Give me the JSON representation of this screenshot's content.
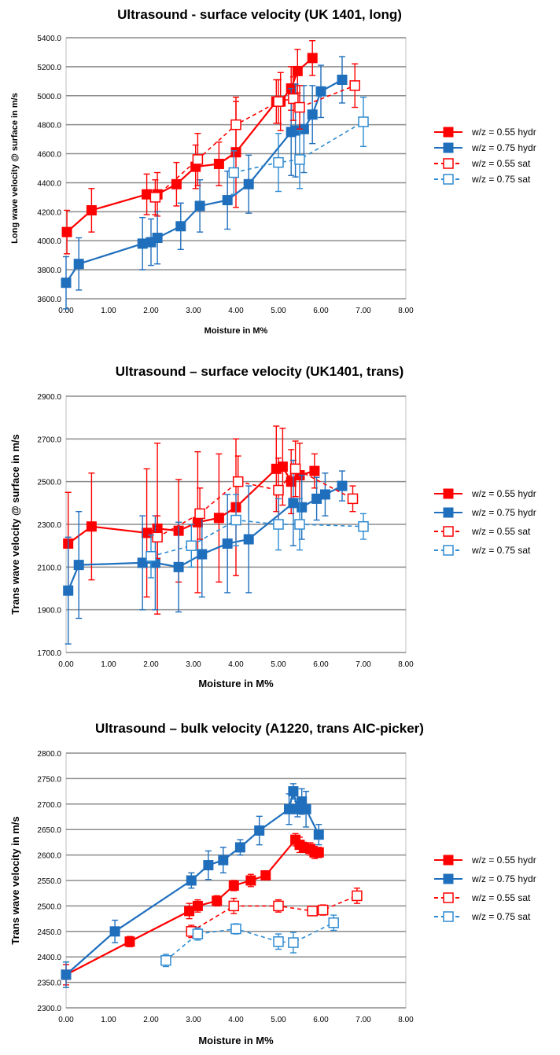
{
  "chart_data": [
    {
      "type": "scatter",
      "title": "Ultrasound - surface velocity (UK 1401, long)",
      "xlabel": "Moisture in M%",
      "ylabel": "Long wave velocity @ surface in m/s",
      "xlim": [
        0,
        8
      ],
      "ylim": [
        3600,
        5400
      ],
      "xticks": [
        "0.00",
        "1.00",
        "2.00",
        "3.00",
        "4.00",
        "5.00",
        "6.00",
        "7.00",
        "8.00"
      ],
      "yticks": [
        "3600.0",
        "3800.0",
        "4000.0",
        "4200.0",
        "4400.0",
        "4600.0",
        "4800.0",
        "5000.0",
        "5200.0",
        "5400.0"
      ],
      "grid": "horizontal",
      "legend": "right",
      "series": [
        {
          "name": "w/z = 0.55 hydr",
          "color": "#ff0000",
          "style": "solid",
          "marker": "filled-square",
          "points": [
            [
              0.02,
              4060,
              150
            ],
            [
              0.6,
              4210,
              150
            ],
            [
              1.9,
              4320,
              140
            ],
            [
              2.15,
              4320,
              150
            ],
            [
              2.6,
              4390,
              150
            ],
            [
              3.05,
              4510,
              150
            ],
            [
              3.6,
              4530,
              150
            ],
            [
              4.0,
              4610,
              380
            ],
            [
              4.95,
              4960,
              150
            ],
            [
              5.05,
              4960,
              200
            ],
            [
              5.3,
              5050,
              150
            ],
            [
              5.45,
              5170,
              150
            ],
            [
              5.8,
              5260,
              120
            ]
          ]
        },
        {
          "name": "w/z = 0.75 hydr",
          "color": "#1f6fbd",
          "style": "solid",
          "marker": "filled-square",
          "points": [
            [
              0.0,
              3710,
              180
            ],
            [
              0.3,
              3840,
              180
            ],
            [
              1.8,
              3980,
              180
            ],
            [
              2.0,
              3990,
              160
            ],
            [
              2.15,
              4020,
              180
            ],
            [
              2.7,
              4100,
              160
            ],
            [
              3.15,
              4240,
              180
            ],
            [
              3.8,
              4280,
              200
            ],
            [
              4.3,
              4390,
              200
            ],
            [
              5.3,
              4750,
              300
            ],
            [
              5.4,
              4760,
              320
            ],
            [
              5.6,
              4770,
              300
            ],
            [
              5.8,
              4870,
              200
            ],
            [
              6.0,
              5030,
              180
            ],
            [
              6.5,
              5110,
              160
            ]
          ]
        },
        {
          "name": "w/z = 0.55 sat",
          "color": "#ff0000",
          "style": "dashed",
          "marker": "open-square",
          "points": [
            [
              2.1,
              4300,
              120
            ],
            [
              3.1,
              4560,
              180
            ],
            [
              4.0,
              4800,
              160
            ],
            [
              5.0,
              4960,
              150
            ],
            [
              5.35,
              4980,
              150
            ],
            [
              5.5,
              4920,
              150
            ],
            [
              6.8,
              5070,
              150
            ]
          ]
        },
        {
          "name": "w/z = 0.75 sat",
          "color": "#2e8bd2",
          "style": "dashed",
          "marker": "open-square",
          "points": [
            [
              3.95,
              4470,
              150
            ],
            [
              5.0,
              4540,
              200
            ],
            [
              5.5,
              4560,
              200
            ],
            [
              7.0,
              4820,
              170
            ]
          ]
        }
      ]
    },
    {
      "type": "scatter",
      "title": "Ultrasound – surface velocity (UK1401, trans)",
      "xlabel": "Moisture in M%",
      "ylabel": "Trans wave velocity @ surface in m/s",
      "xlim": [
        0,
        8
      ],
      "ylim": [
        1700,
        2900
      ],
      "xticks": [
        "0.00",
        "1.00",
        "2.00",
        "3.00",
        "4.00",
        "5.00",
        "6.00",
        "7.00",
        "8.00"
      ],
      "yticks": [
        "1700.0",
        "1900.0",
        "2100.0",
        "2300.0",
        "2500.0",
        "2700.0",
        "2900.0"
      ],
      "grid": "horizontal",
      "legend": "right",
      "series": [
        {
          "name": "w/z = 0.55 hydr",
          "color": "#ff0000",
          "style": "solid",
          "marker": "filled-square",
          "points": [
            [
              0.05,
              2210,
              240
            ],
            [
              0.6,
              2290,
              250
            ],
            [
              1.9,
              2260,
              300
            ],
            [
              2.15,
              2280,
              400
            ],
            [
              2.65,
              2270,
              240
            ],
            [
              3.1,
              2310,
              330
            ],
            [
              3.6,
              2330,
              300
            ],
            [
              4.0,
              2380,
              320
            ],
            [
              4.95,
              2560,
              200
            ],
            [
              5.1,
              2570,
              180
            ],
            [
              5.3,
              2500,
              150
            ],
            [
              5.5,
              2530,
              150
            ],
            [
              5.85,
              2550,
              80
            ]
          ]
        },
        {
          "name": "w/z = 0.75 hydr",
          "color": "#1f6fbd",
          "style": "solid",
          "marker": "filled-square",
          "points": [
            [
              0.05,
              1990,
              250
            ],
            [
              0.3,
              2110,
              250
            ],
            [
              1.8,
              2120,
              220
            ],
            [
              2.1,
              2120,
              220
            ],
            [
              2.65,
              2100,
              210
            ],
            [
              3.2,
              2160,
              200
            ],
            [
              3.8,
              2210,
              230
            ],
            [
              4.3,
              2230,
              250
            ],
            [
              5.35,
              2400,
              200
            ],
            [
              5.55,
              2380,
              150
            ],
            [
              5.9,
              2420,
              100
            ],
            [
              6.1,
              2440,
              100
            ],
            [
              6.5,
              2480,
              70
            ]
          ]
        },
        {
          "name": "w/z = 0.55 sat",
          "color": "#ff0000",
          "style": "dashed",
          "marker": "open-square",
          "points": [
            [
              2.15,
              2240,
              100
            ],
            [
              3.15,
              2350,
              120
            ],
            [
              4.05,
              2500,
              120
            ],
            [
              5.0,
              2460,
              150
            ],
            [
              5.4,
              2560,
              130
            ],
            [
              6.75,
              2420,
              60
            ]
          ]
        },
        {
          "name": "w/z = 0.75 sat",
          "color": "#2e8bd2",
          "style": "dashed",
          "marker": "open-square",
          "points": [
            [
              2.0,
              2150,
              100
            ],
            [
              2.95,
              2200,
              100
            ],
            [
              4.0,
              2320,
              120
            ],
            [
              5.0,
              2300,
              120
            ],
            [
              5.5,
              2300,
              120
            ],
            [
              7.0,
              2290,
              60
            ]
          ]
        }
      ]
    },
    {
      "type": "scatter",
      "title": "Ultrasound – bulk velocity (A1220, trans AIC-picker)",
      "xlabel": "Moisture in M%",
      "ylabel": "Trans wave velocity in m/s",
      "xlim": [
        0,
        8
      ],
      "ylim": [
        2300,
        2800
      ],
      "xticks": [
        "0.00",
        "1.00",
        "2.00",
        "3.00",
        "4.00",
        "5.00",
        "6.00",
        "7.00",
        "8.00"
      ],
      "yticks": [
        "2300.0",
        "2350.0",
        "2400.0",
        "2450.0",
        "2500.0",
        "2550.0",
        "2600.0",
        "2650.0",
        "2700.0",
        "2750.0",
        "2800.0"
      ],
      "grid": "horizontal",
      "legend": "right",
      "series": [
        {
          "name": "w/z = 0.55 hydr",
          "color": "#ff0000",
          "style": "solid",
          "marker": "filled-square",
          "points": [
            [
              0.0,
              2365,
              20
            ],
            [
              1.5,
              2430,
              10
            ],
            [
              2.9,
              2490,
              15
            ],
            [
              3.1,
              2500,
              12
            ],
            [
              3.55,
              2510,
              10
            ],
            [
              3.95,
              2540,
              10
            ],
            [
              4.35,
              2550,
              12
            ],
            [
              4.7,
              2560,
              8
            ],
            [
              5.4,
              2630,
              12
            ],
            [
              5.5,
              2620,
              15
            ],
            [
              5.6,
              2615,
              10
            ],
            [
              5.75,
              2612,
              12
            ],
            [
              5.85,
              2605,
              12
            ],
            [
              5.95,
              2605,
              10
            ]
          ]
        },
        {
          "name": "w/z = 0.75 hydr",
          "color": "#1f6fbd",
          "style": "solid",
          "marker": "filled-square",
          "points": [
            [
              0.0,
              2365,
              25
            ],
            [
              1.15,
              2450,
              22
            ],
            [
              2.95,
              2550,
              15
            ],
            [
              3.35,
              2580,
              28
            ],
            [
              3.7,
              2590,
              25
            ],
            [
              4.1,
              2615,
              15
            ],
            [
              4.55,
              2648,
              28
            ],
            [
              5.25,
              2690,
              30
            ],
            [
              5.35,
              2725,
              15
            ],
            [
              5.45,
              2690,
              15
            ],
            [
              5.55,
              2705,
              25
            ],
            [
              5.65,
              2690,
              35
            ],
            [
              5.95,
              2640,
              20
            ]
          ]
        },
        {
          "name": "w/z = 0.55 sat",
          "color": "#ff0000",
          "style": "dashed",
          "marker": "open-square",
          "points": [
            [
              2.95,
              2450,
              12
            ],
            [
              3.95,
              2500,
              15
            ],
            [
              5.0,
              2500,
              12
            ],
            [
              5.8,
              2490,
              8
            ],
            [
              6.05,
              2492,
              10
            ],
            [
              6.85,
              2520,
              15
            ]
          ]
        },
        {
          "name": "w/z = 0.75 sat",
          "color": "#2e8bd2",
          "style": "dashed",
          "marker": "open-square",
          "points": [
            [
              2.35,
              2393,
              12
            ],
            [
              3.1,
              2445,
              12
            ],
            [
              4.0,
              2455,
              10
            ],
            [
              5.0,
              2430,
              15
            ],
            [
              5.35,
              2428,
              20
            ],
            [
              6.3,
              2467,
              15
            ]
          ]
        }
      ]
    }
  ]
}
